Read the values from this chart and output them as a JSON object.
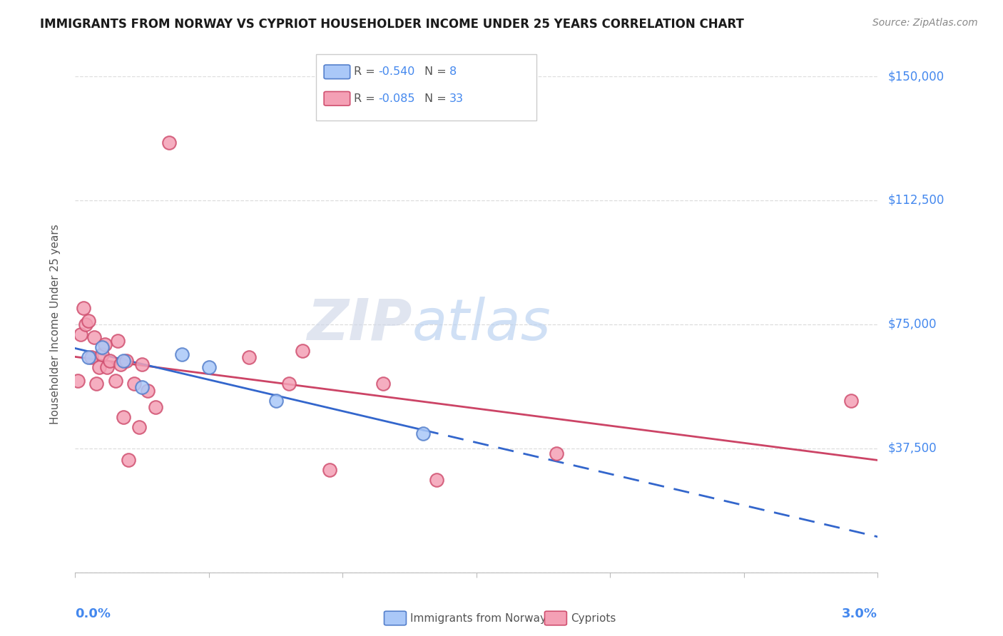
{
  "title": "IMMIGRANTS FROM NORWAY VS CYPRIOT HOUSEHOLDER INCOME UNDER 25 YEARS CORRELATION CHART",
  "source": "Source: ZipAtlas.com",
  "ylabel": "Householder Income Under 25 years",
  "xmin": 0.0,
  "xmax": 0.03,
  "ymin": 0,
  "ymax": 150000,
  "yticks": [
    0,
    37500,
    75000,
    112500,
    150000
  ],
  "ytick_labels": [
    "",
    "$37,500",
    "$75,000",
    "$112,500",
    "$150,000"
  ],
  "xtick_positions": [
    0.0,
    0.005,
    0.01,
    0.015,
    0.02,
    0.025,
    0.03
  ],
  "norway_R": -0.54,
  "norway_N": 8,
  "cypriot_R": -0.085,
  "cypriot_N": 33,
  "norway_color": "#aac8f8",
  "cypriot_color": "#f4a0b5",
  "norway_edge_color": "#5580cc",
  "cypriot_edge_color": "#d05070",
  "trendline_norway_color": "#3366cc",
  "trendline_cypriot_color": "#cc4466",
  "norway_x": [
    0.0005,
    0.001,
    0.0018,
    0.0025,
    0.004,
    0.005,
    0.0075,
    0.013
  ],
  "norway_y": [
    65000,
    68000,
    64000,
    56000,
    66000,
    62000,
    52000,
    42000
  ],
  "cypriot_x": [
    0.0001,
    0.0002,
    0.0003,
    0.0004,
    0.0005,
    0.0006,
    0.0007,
    0.0008,
    0.0009,
    0.001,
    0.0011,
    0.0012,
    0.0013,
    0.0015,
    0.0016,
    0.0017,
    0.0018,
    0.0019,
    0.002,
    0.0022,
    0.0024,
    0.0025,
    0.0027,
    0.003,
    0.0035,
    0.0065,
    0.008,
    0.0085,
    0.0095,
    0.0115,
    0.0135,
    0.018,
    0.029
  ],
  "cypriot_y": [
    58000,
    72000,
    80000,
    75000,
    76000,
    65000,
    71000,
    57000,
    62000,
    66000,
    69000,
    62000,
    64000,
    58000,
    70000,
    63000,
    47000,
    64000,
    34000,
    57000,
    44000,
    63000,
    55000,
    50000,
    130000,
    65000,
    57000,
    67000,
    31000,
    57000,
    28000,
    36000,
    52000
  ],
  "watermark_zip": "ZIP",
  "watermark_atlas": "atlas",
  "background_color": "#ffffff",
  "grid_color": "#dddddd",
  "right_label_color": "#4488ee",
  "title_color": "#1a1a1a",
  "source_color": "#888888",
  "axis_label_color": "#555555"
}
